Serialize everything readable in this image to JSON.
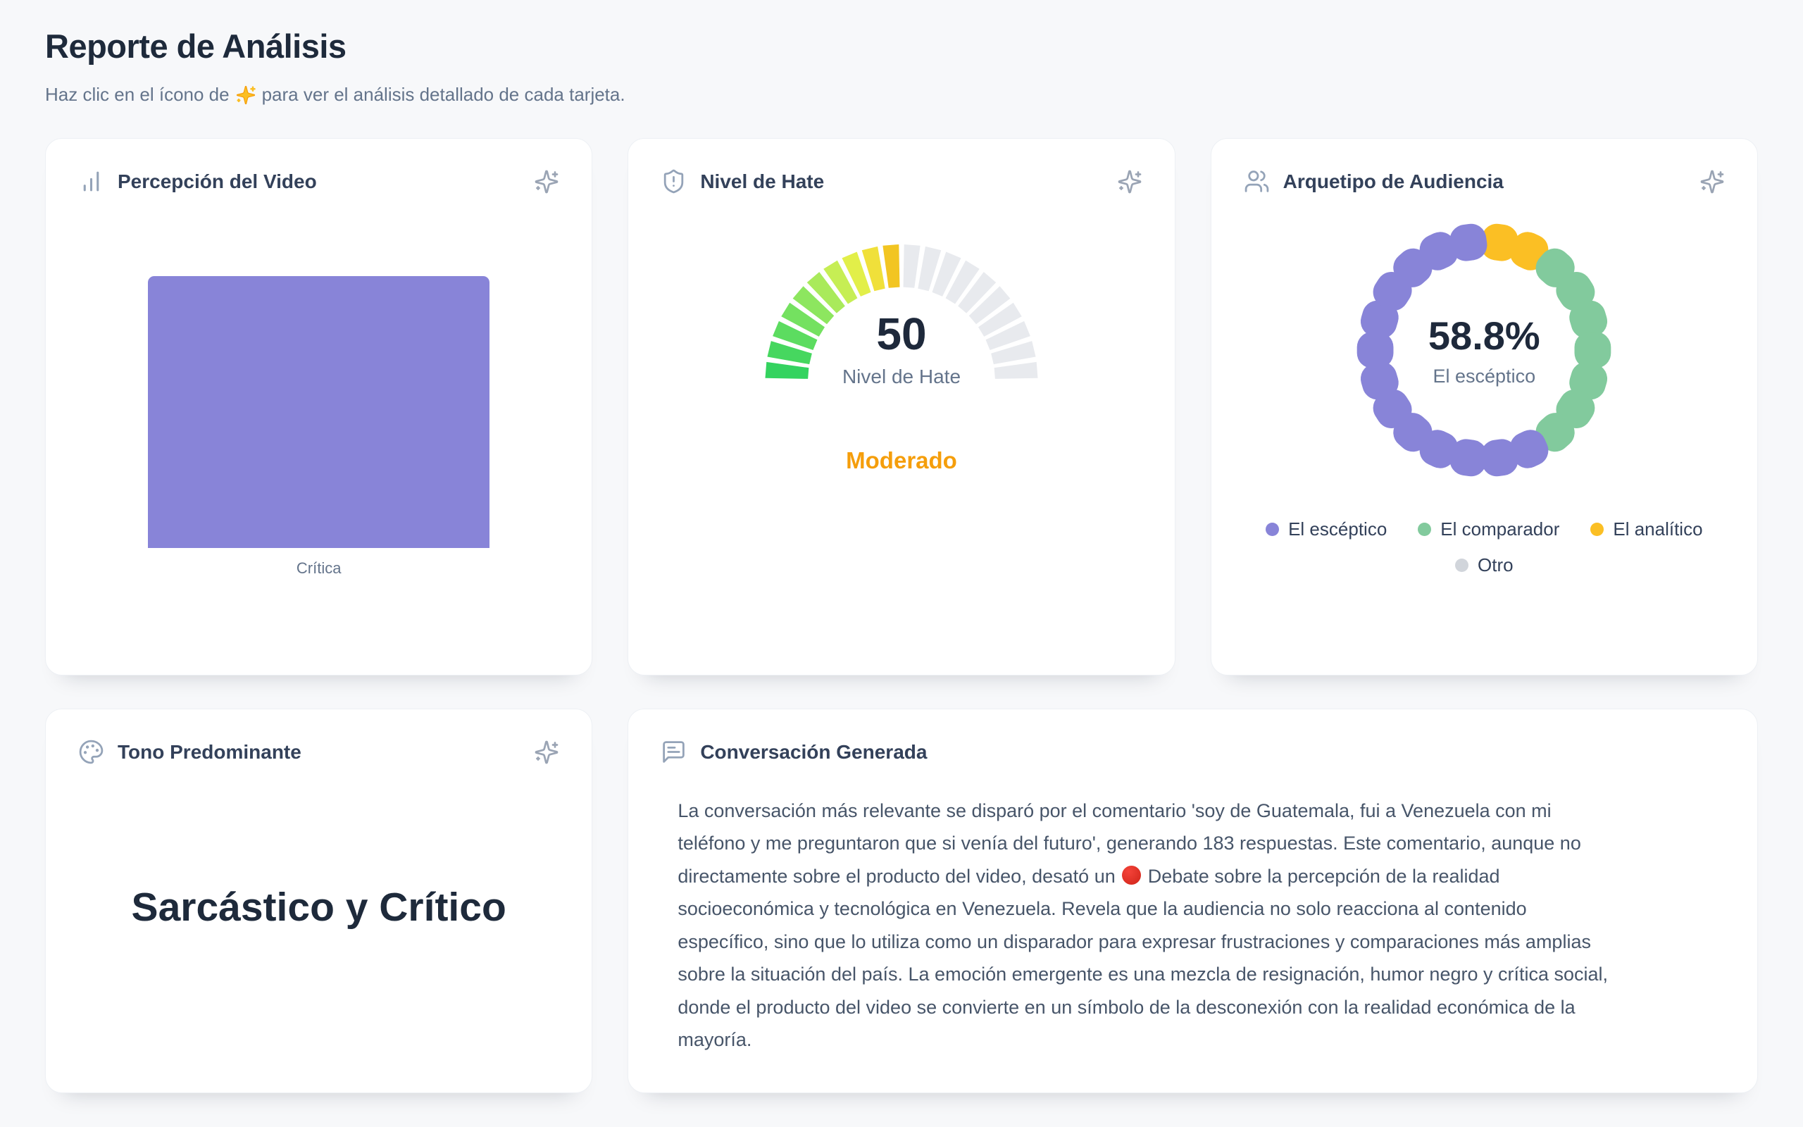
{
  "header": {
    "title": "Reporte de Análisis",
    "subtitle_part1": "Haz clic en el ícono de",
    "subtitle_emoji": "✨",
    "subtitle_part2": "para ver el análisis detallado de cada tarjeta."
  },
  "cards": {
    "percepcion": {
      "title": "Percepción del Video",
      "icon": "bar-chart-icon",
      "bar": {
        "label": "Crítica",
        "color": "#8884d8",
        "height_pct": 100
      }
    },
    "hate": {
      "title": "Nivel de Hate",
      "icon": "shield-alert-icon",
      "value": "50",
      "value_label": "Nivel de Hate",
      "status": "Moderado",
      "status_color": "#f59e0b",
      "gauge": {
        "segments_total": 20,
        "segments_filled": 10,
        "filled_colors": [
          "#34d35f",
          "#46d75f",
          "#5cdc60",
          "#74e160",
          "#8de65f",
          "#a9ea5b",
          "#c6ee54",
          "#e2ef49",
          "#f0e03a",
          "#f2c522"
        ],
        "empty_color": "#e8eaee"
      }
    },
    "arquetipo": {
      "title": "Arquetipo de Audiencia",
      "icon": "users-icon",
      "center_value": "58.8%",
      "center_label": "El escéptico",
      "ring": {
        "dot_total": 22,
        "segments_clockwise_from_top": [
          {
            "name": "El analítico",
            "count": 2,
            "color": "#fbbf24"
          },
          {
            "name": "El comparador",
            "count": 7,
            "color": "#82ca9d"
          },
          {
            "name": "El escéptico",
            "count": 13,
            "color": "#8884d8"
          }
        ]
      },
      "legend": [
        {
          "label": "El escéptico",
          "color": "#8884d8"
        },
        {
          "label": "El comparador",
          "color": "#82ca9d"
        },
        {
          "label": "El analítico",
          "color": "#fbbf24"
        },
        {
          "label": "Otro",
          "color": "#d1d5db"
        }
      ]
    },
    "tono": {
      "title": "Tono Predominante",
      "icon": "palette-icon",
      "value": "Sarcástico y Crítico"
    },
    "conversacion": {
      "title": "Conversación Generada",
      "icon": "message-square-icon",
      "text_before": "La conversación más relevante se disparó por el comentario 'soy de Guatemala, fui a Venezuela con mi teléfono y me preguntaron que si venía del futuro', generando 183 respuestas. Este comentario, aunque no directamente sobre el producto del video, desató un",
      "emoji": "🔴",
      "text_after": "Debate sobre la percepción de la realidad socioeconómica y tecnológica en Venezuela. Revela que la audiencia no solo reacciona al contenido específico, sino que lo utiliza como un disparador para expresar frustraciones y comparaciones más amplias sobre la situación del país. La emoción emergente es una mezcla de resignación, humor negro y crítica social, donde el producto del video se convierte en un símbolo de la desconexión con la realidad económica de la mayoría."
    }
  },
  "chart_data": [
    {
      "type": "bar",
      "title": "Percepción del Video",
      "categories": [
        "Crítica"
      ],
      "values": [
        100
      ],
      "bar_color": "#8884d8",
      "xlabel": "",
      "ylabel": "",
      "grid": false,
      "legend_position": "none"
    },
    {
      "type": "gauge",
      "title": "Nivel de Hate",
      "value": 50,
      "min": 0,
      "max": 100,
      "center_label": "Nivel de Hate",
      "status_label": "Moderado",
      "segments": 20,
      "filled_segments": 10,
      "color_scale": [
        "green",
        "yellow"
      ]
    },
    {
      "type": "pie",
      "title": "Arquetipo de Audiencia",
      "labels": [
        "El escéptico",
        "El comparador",
        "El analítico",
        "Otro"
      ],
      "values_pct": [
        58.8,
        31.8,
        9.1,
        0
      ],
      "dot_counts": [
        13,
        7,
        2,
        0
      ],
      "colors": [
        "#8884d8",
        "#82ca9d",
        "#fbbf24",
        "#d1d5db"
      ],
      "center_value": "58.8%",
      "center_label": "El escéptico",
      "legend_position": "bottom"
    }
  ]
}
